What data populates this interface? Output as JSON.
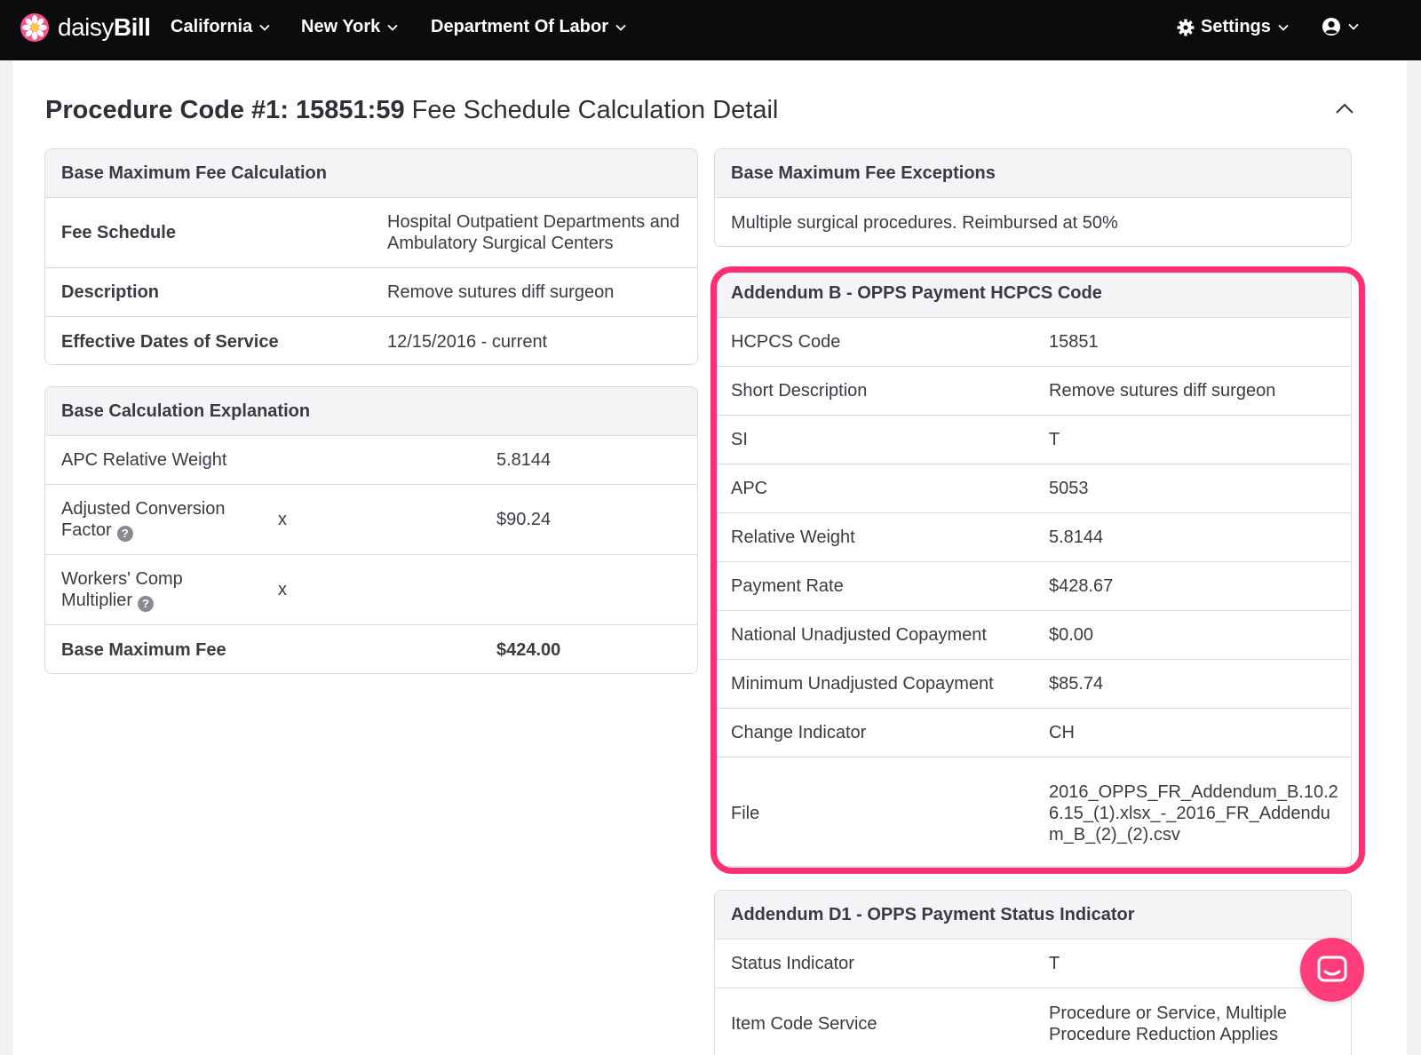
{
  "app": {
    "logo_text_light": "daisy",
    "logo_text_bold": "Bill"
  },
  "nav": {
    "items": [
      "California",
      "New York",
      "Department Of Labor"
    ],
    "settings_label": "Settings"
  },
  "page": {
    "title_bold": "Procedure Code #1: 15851:59",
    "title_rest": " Fee Schedule Calculation Detail"
  },
  "base_max_fee": {
    "title": "Base Maximum Fee Calculation",
    "rows": [
      {
        "label": "Fee Schedule",
        "value": "Hospital Outpatient Departments and Ambulatory Surgical Centers"
      },
      {
        "label": "Description",
        "value": "Remove sutures diff surgeon"
      },
      {
        "label": "Effective Dates of Service",
        "value": "12/15/2016 - current"
      }
    ]
  },
  "base_calc": {
    "title": "Base Calculation Explanation",
    "rows": [
      {
        "label": "APC Relative Weight",
        "op": "",
        "value": "5.8144"
      },
      {
        "label": "Adjusted Conversion Factor",
        "op": "x",
        "value": "$90.24"
      },
      {
        "label": "Workers' Comp Multiplier",
        "op": "x",
        "value": ""
      },
      {
        "label": "Base Maximum Fee",
        "op": "",
        "value": "$424.00"
      }
    ]
  },
  "exceptions": {
    "title": "Base Maximum Fee Exceptions",
    "text": "Multiple surgical procedures. Reimbursed at 50%"
  },
  "addendum_b": {
    "title": "Addendum B - OPPS Payment HCPCS Code",
    "rows": [
      {
        "label": "HCPCS Code",
        "value": "15851"
      },
      {
        "label": "Short Description",
        "value": "Remove sutures diff surgeon"
      },
      {
        "label": "SI",
        "value": "T"
      },
      {
        "label": "APC",
        "value": "5053"
      },
      {
        "label": "Relative Weight",
        "value": "5.8144"
      },
      {
        "label": "Payment Rate",
        "value": "$428.67"
      },
      {
        "label": "National Unadjusted Copayment",
        "value": "$0.00"
      },
      {
        "label": "Minimum Unadjusted Copayment",
        "value": "$85.74"
      },
      {
        "label": "Change Indicator",
        "value": "CH"
      },
      {
        "label": "File",
        "value": "2016_OPPS_FR_Addendum_B.10.26.15_(1).xlsx_-_2016_FR_Addendum_B_(2)_(2).csv"
      }
    ]
  },
  "addendum_d1": {
    "title": "Addendum D1 - OPPS Payment Status Indicator",
    "rows": [
      {
        "label": "Status Indicator",
        "value": "T"
      },
      {
        "label": "Item Code Service",
        "value": "Procedure or Service, Multiple Procedure Reduction Applies"
      }
    ]
  },
  "colors": {
    "highlight": "#ff2d73",
    "chat": "#ff3d7a",
    "topbar": "#0c0c0e"
  }
}
